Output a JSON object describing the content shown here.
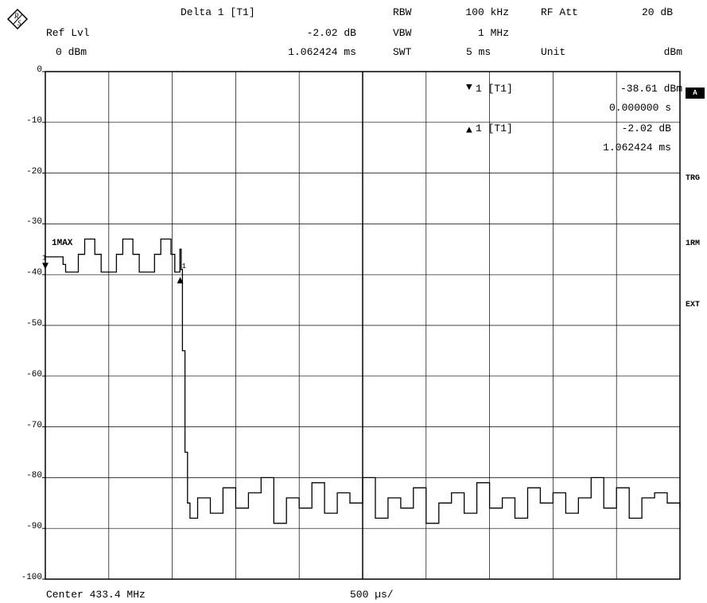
{
  "header": {
    "ref_lvl_label": "Ref Lvl",
    "ref_lvl_value": "0 dBm",
    "marker_title": "Delta 1 [T1]",
    "marker_level": "-2.02 dB",
    "marker_time": "1.062424 ms",
    "rbw_label": "RBW",
    "rbw_value": "100 kHz",
    "vbw_label": "VBW",
    "vbw_value": "1 MHz",
    "swt_label": "SWT",
    "swt_value": "5 ms",
    "rfatt_label": "RF Att",
    "rfatt_value": "20 dB",
    "unit_label": "Unit",
    "unit_value": "dBm"
  },
  "markers_info": {
    "m1_label": "1 [T1]",
    "m1_level": "-38.61 dBm",
    "m1_time": "0.000000 s",
    "d1_label": "1 [T1]",
    "d1_level": "-2.02 dB",
    "d1_time": "1.062424 ms"
  },
  "side": {
    "a": "A",
    "trg": "TRG",
    "rm": "1RM",
    "ext": "EXT"
  },
  "footer": {
    "center": "Center 433.4 MHz",
    "per_div": "500 µs/"
  },
  "trace_label": "1MAX",
  "marker_tag": "1",
  "colors": {
    "trace": "#000000",
    "grid": "#000000",
    "background": "#ffffff"
  },
  "chart_data": {
    "type": "line",
    "xlabel": "",
    "ylabel": "",
    "xlim": [
      0,
      5
    ],
    "x_unit": "ms",
    "ylim": [
      -100,
      0
    ],
    "y_ticks": [
      0,
      -10,
      -20,
      -30,
      -40,
      -50,
      -60,
      -70,
      -80,
      -90,
      -100
    ],
    "grid": true,
    "series": [
      {
        "name": "1MAX",
        "x": [
          0,
          0.12,
          0.14,
          0.16,
          0.22,
          0.26,
          0.31,
          0.39,
          0.44,
          0.5,
          0.56,
          0.61,
          0.69,
          0.74,
          0.8,
          0.86,
          0.91,
          0.99,
          1.02,
          1.05,
          1.06,
          1.07,
          1.08,
          1.1,
          1.12,
          1.14,
          1.2,
          1.3,
          1.4,
          1.5,
          1.6,
          1.7,
          1.8,
          1.9,
          2.0,
          2.1,
          2.2,
          2.3,
          2.4,
          2.5,
          2.6,
          2.7,
          2.8,
          2.9,
          3.0,
          3.1,
          3.2,
          3.3,
          3.4,
          3.5,
          3.6,
          3.7,
          3.8,
          3.9,
          4.0,
          4.1,
          4.2,
          4.3,
          4.4,
          4.5,
          4.6,
          4.7,
          4.8,
          4.9,
          5.0
        ],
        "y": [
          -36.5,
          -36.5,
          -38,
          -39.5,
          -39.5,
          -36,
          -33,
          -36,
          -39.5,
          -39.5,
          -36,
          -33,
          -36,
          -39.5,
          -39.5,
          -36,
          -33,
          -36,
          -39.5,
          -39.5,
          -35,
          -39,
          -55,
          -75,
          -85,
          -88,
          -84,
          -87,
          -82,
          -86,
          -83,
          -80,
          -89,
          -84,
          -86,
          -81,
          -87,
          -83,
          -85,
          -80,
          -88,
          -84,
          -86,
          -82,
          -89,
          -85,
          -83,
          -87,
          -81,
          -86,
          -84,
          -88,
          -82,
          -85,
          -83,
          -87,
          -84,
          -80,
          -86,
          -82,
          -88,
          -84,
          -83,
          -85,
          -86
        ]
      }
    ],
    "markers": [
      {
        "name": "1 [T1]",
        "x": 0.0,
        "y": -38.61
      },
      {
        "name": "Delta 1 [T1]",
        "x": 1.062424,
        "y": -40.63
      }
    ]
  }
}
